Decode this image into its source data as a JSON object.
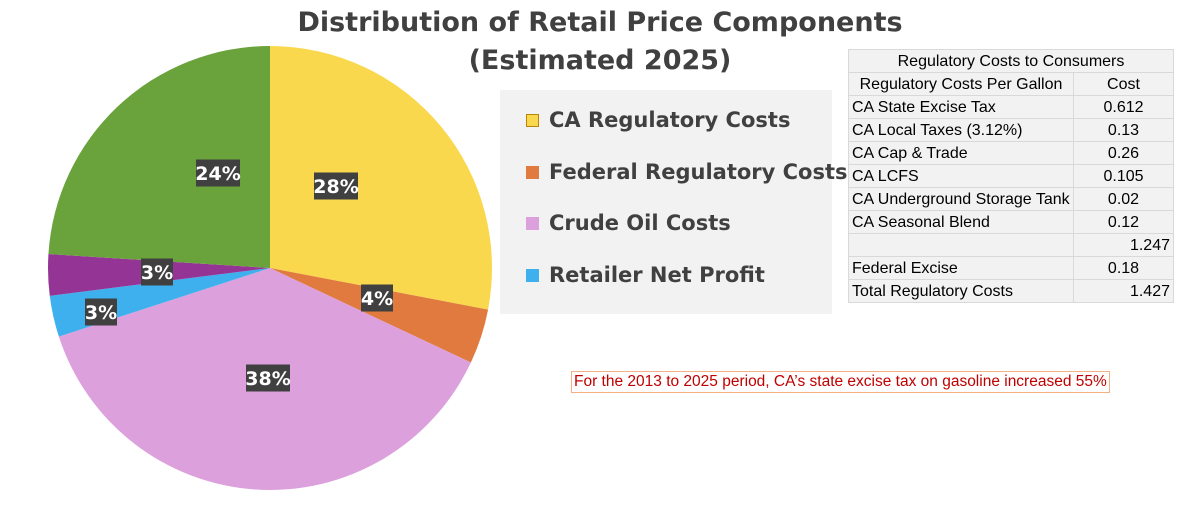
{
  "chart_data": {
    "type": "pie",
    "title_line1": "Distribution of Retail Price Components",
    "title_line2": "(Estimated 2025)",
    "slices": [
      {
        "name": "CA Regulatory Costs",
        "value": 28,
        "label": "28%",
        "color": "#fad84d"
      },
      {
        "name": "Federal Regulatory Costs",
        "value": 4,
        "label": "4%",
        "color": "#e07a3e"
      },
      {
        "name": "Crude Oil Costs",
        "value": 38,
        "label": "38%",
        "color": "#dca0dc"
      },
      {
        "name": "Retailer Net Profit",
        "value": 3,
        "label": "3%",
        "color": "#3fb0ee"
      },
      {
        "name": "",
        "value": 3,
        "label": "3%",
        "color": "#943595"
      },
      {
        "name": "",
        "value": 24,
        "label": "24%",
        "color": "#6aa23c"
      }
    ],
    "legend": [
      {
        "label": "CA Regulatory Costs",
        "color": "#fad84d",
        "border": "#b8860b"
      },
      {
        "label": "Federal Regulatory Costs",
        "color": "#e07a3e",
        "border": "#e07a3e"
      },
      {
        "label": "Crude Oil Costs",
        "color": "#dca0dc",
        "border": "#dca0dc"
      },
      {
        "label": "Retailer Net Profit",
        "color": "#3fb0ee",
        "border": "#3fb0ee"
      }
    ],
    "legend_position": "right"
  },
  "table": {
    "title": "Regulatory Costs to Consumers",
    "col_item": "Regulatory Costs Per Gallon",
    "col_cost": "Cost",
    "rows": [
      {
        "item": "CA State Excise Tax",
        "cost": "0.612"
      },
      {
        "item": "CA Local Taxes (3.12%)",
        "cost": "0.13"
      },
      {
        "item": "CA Cap & Trade",
        "cost": "0.26"
      },
      {
        "item": "CA LCFS",
        "cost": "0.105"
      },
      {
        "item": "CA Underground Storage Tank",
        "cost": "0.02"
      },
      {
        "item": "CA Seasonal Blend",
        "cost": "0.12"
      },
      {
        "item": "",
        "cost": "1.247"
      },
      {
        "item": "Federal Excise",
        "cost": "0.18"
      },
      {
        "item": "Total Regulatory Costs",
        "cost": "1.427"
      }
    ]
  },
  "note": "For the 2013 to 2025 period, CA’s state excise tax on gasoline increased 55%"
}
